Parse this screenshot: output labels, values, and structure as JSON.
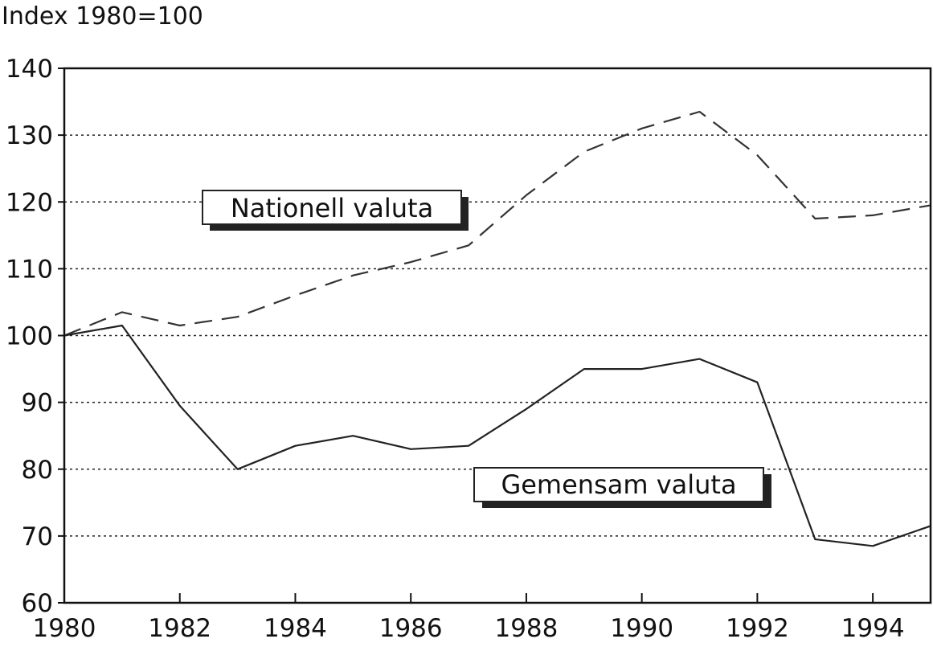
{
  "chart_data": {
    "type": "line",
    "ylabel": "Index 1980=100",
    "xlim": [
      1980,
      1995
    ],
    "ylim": [
      60,
      140
    ],
    "x_ticks": [
      "1980",
      "1982",
      "1984",
      "1986",
      "1988",
      "1990",
      "1992",
      "1994"
    ],
    "y_ticks": [
      "60",
      "70",
      "80",
      "90",
      "100",
      "110",
      "120",
      "130",
      "140"
    ],
    "grid": "horizontal dotted",
    "x": [
      1980,
      1981,
      1982,
      1983,
      1984,
      1985,
      1986,
      1987,
      1988,
      1989,
      1990,
      1991,
      1992,
      1993,
      1994,
      1995
    ],
    "series": [
      {
        "name": "Nationell valuta",
        "style": "dashed",
        "color": "#333333",
        "values": [
          100,
          103.5,
          101.5,
          102.8,
          106,
          109,
          111,
          113.5,
          121,
          127.5,
          131,
          133.5,
          127,
          117.5,
          118,
          119.5
        ]
      },
      {
        "name": "Gemensam valuta",
        "style": "solid",
        "color": "#222222",
        "values": [
          100,
          101.5,
          89.5,
          80,
          83.5,
          85,
          83,
          83.5,
          89,
          95,
          95,
          96.5,
          93,
          69.5,
          68.5,
          71.5
        ]
      }
    ]
  }
}
